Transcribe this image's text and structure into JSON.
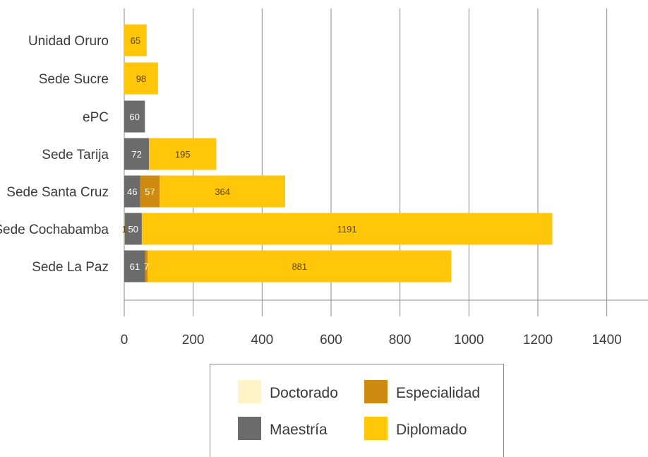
{
  "chart_data": {
    "type": "bar",
    "orientation": "horizontal",
    "stacked": true,
    "categories": [
      "Unidad Oruro",
      "Sede Sucre",
      "ePC",
      "Sede Tarija",
      "Sede Santa Cruz",
      "Sede Cochabamba",
      "Sede La Paz"
    ],
    "series": [
      {
        "name": "Doctorado",
        "color": "#fff3c8",
        "values": [
          0,
          0,
          0,
          0,
          0,
          1,
          0
        ],
        "labels": [
          "",
          "",
          "",
          "",
          "",
          "1",
          ""
        ]
      },
      {
        "name": "Maestría",
        "color": "#6b6b6b",
        "values": [
          0,
          0,
          60,
          72,
          46,
          50,
          61
        ],
        "labels": [
          "",
          "",
          "60",
          "72",
          "46",
          "50",
          "61"
        ]
      },
      {
        "name": "Especialidad",
        "color": "#cd8b12",
        "values": [
          0,
          0,
          0,
          0,
          57,
          0,
          7
        ],
        "labels": [
          "",
          "",
          "",
          "",
          "57",
          "",
          "7"
        ]
      },
      {
        "name": "Diplomado",
        "color": "#ffc60a",
        "values": [
          65,
          98,
          0,
          195,
          364,
          1191,
          881
        ],
        "labels": [
          "65",
          "98",
          "",
          "195",
          "364",
          "1191",
          "881"
        ]
      }
    ],
    "xlim": [
      0,
      1500
    ],
    "xticks": [
      0,
      200,
      400,
      600,
      800,
      1000,
      1200,
      1400
    ],
    "grid": true,
    "legend_position": "bottom",
    "legend_order": [
      "Doctorado",
      "Especialidad",
      "Maestría",
      "Diplomado"
    ],
    "title": "",
    "xlabel": "",
    "ylabel": ""
  }
}
